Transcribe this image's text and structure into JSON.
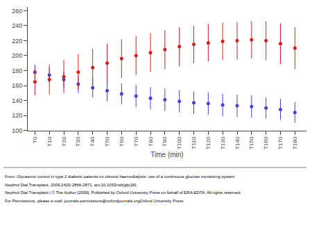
{
  "chart_data": {
    "type": "scatter",
    "x": [
      0,
      10,
      20,
      30,
      40,
      50,
      60,
      70,
      80,
      90,
      100,
      110,
      120,
      130,
      140,
      150,
      160,
      170,
      180
    ],
    "xlabel": "Time (min)",
    "xlim": [
      -5,
      188
    ],
    "xticks": [
      {
        "value": 0,
        "label": "T0"
      },
      {
        "value": 10,
        "label": "T10"
      },
      {
        "value": 20,
        "label": "T20"
      },
      {
        "value": 30,
        "label": "T30"
      },
      {
        "value": 40,
        "label": "T40"
      },
      {
        "value": 50,
        "label": "T50"
      },
      {
        "value": 60,
        "label": "T60"
      },
      {
        "value": 70,
        "label": "T70"
      },
      {
        "value": 80,
        "label": "T80"
      },
      {
        "value": 90,
        "label": "T90"
      },
      {
        "value": 100,
        "label": "T100"
      },
      {
        "value": 110,
        "label": "T110"
      },
      {
        "value": 120,
        "label": "T120"
      },
      {
        "value": 130,
        "label": "T130"
      },
      {
        "value": 140,
        "label": "T140"
      },
      {
        "value": 150,
        "label": "T150"
      },
      {
        "value": 160,
        "label": "T160"
      },
      {
        "value": 170,
        "label": "T170"
      },
      {
        "value": 180,
        "label": "T180"
      }
    ],
    "ylim": [
      100,
      265
    ],
    "yticks": [
      100,
      120,
      140,
      160,
      180,
      200,
      220,
      240,
      260
    ],
    "grid": false,
    "marker": "circle",
    "series": [
      {
        "color": "#4444cc",
        "values": [
          178,
          174,
          168,
          162,
          157,
          153,
          149,
          146,
          143,
          141,
          139,
          137,
          136,
          134,
          133,
          132,
          130,
          128,
          124
        ],
        "errors": [
          10,
          10,
          11,
          12,
          13,
          14,
          14,
          15,
          15,
          15,
          15,
          15,
          15,
          15,
          15,
          15,
          14,
          14,
          14
        ]
      },
      {
        "color": "#cc2222",
        "values": [
          165,
          168,
          172,
          178,
          184,
          190,
          196,
          200,
          204,
          208,
          212,
          215,
          217,
          219,
          220,
          221,
          220,
          216,
          210
        ],
        "errors": [
          18,
          20,
          22,
          24,
          25,
          26,
          26,
          26,
          26,
          26,
          26,
          25,
          25,
          25,
          25,
          25,
          26,
          27,
          28
        ]
      }
    ],
    "annotations": [
      "From: Glycaemic control in type 2 diabetic patients on chronic haemodialysis: use of a continuous glucose monitoring system",
      "Nephrol Dial Transplant. 2009;24(9):2866-2871. doi:10.1093/ndt/gfp181",
      "Nephrol Dial Transplant | © The Author [2009]. Published by Oxford University Press on behalf of ERA-EDTA. All rights reserved.",
      "For Permissions, please e-mail: journals.permissions@oxfordjournals.orgOxford University Press"
    ]
  }
}
